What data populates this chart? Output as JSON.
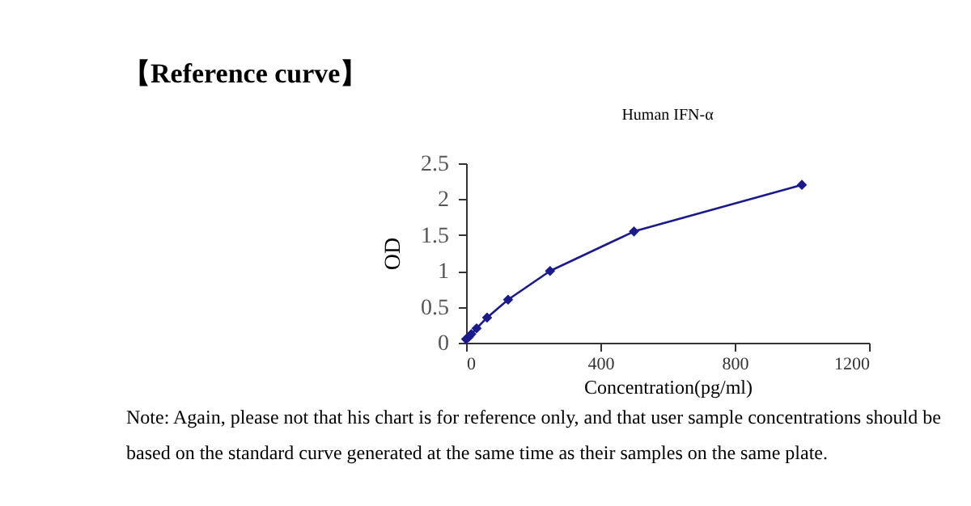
{
  "chart_data": {
    "type": "line",
    "title": "【Reference curve】",
    "subtitle": "Human IFN-α",
    "xlabel": "Concentration(pg/ml)",
    "ylabel": "OD",
    "annotations": [
      "Note: Again, please not that his chart is for reference only, and that user sample concentrations should be based on the standard curve generated at the same time as their samples on the same plate."
    ],
    "x": [
      0,
      7.8,
      15.6,
      31.25,
      62.5,
      125,
      250,
      500,
      1000
    ],
    "series": [
      {
        "color": "#1a1a8c",
        "values": [
          0.05,
          0.08,
          0.12,
          0.2,
          0.35,
          0.6,
          1.0,
          1.55,
          2.2
        ]
      }
    ],
    "marker": "diamond",
    "xlim": [
      0,
      1200
    ],
    "xticks": [
      0,
      400,
      800,
      1200
    ],
    "ylim": [
      0,
      2.5
    ],
    "yticks": [
      0,
      0.5,
      1,
      1.5,
      2,
      2.5
    ]
  }
}
